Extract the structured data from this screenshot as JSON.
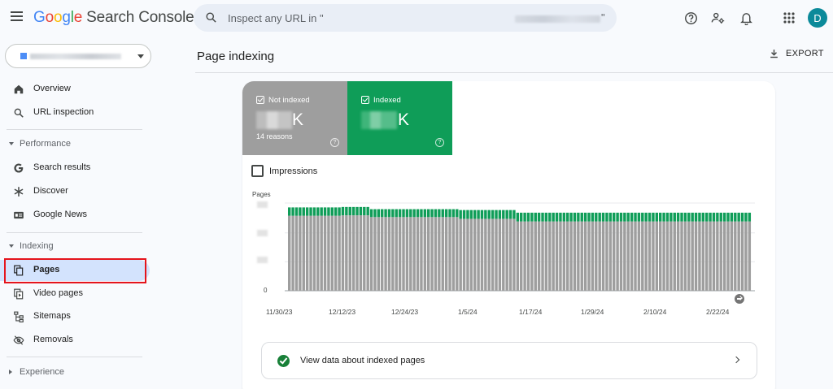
{
  "app": {
    "logo_text": "Google",
    "product_name": "Search Console",
    "account_initial": "D"
  },
  "search": {
    "placeholder": "Inspect any URL in \"",
    "closing_quote": "\""
  },
  "sidebar": {
    "top_items": [
      {
        "label": "Overview",
        "icon": "home-icon"
      },
      {
        "label": "URL inspection",
        "icon": "search-icon"
      }
    ],
    "performance": {
      "header": "Performance",
      "items": [
        {
          "label": "Search results",
          "icon": "google-g-icon"
        },
        {
          "label": "Discover",
          "icon": "asterisk-icon"
        },
        {
          "label": "Google News",
          "icon": "news-icon"
        }
      ]
    },
    "indexing": {
      "header": "Indexing",
      "items": [
        {
          "label": "Pages",
          "icon": "pages-icon",
          "active": true
        },
        {
          "label": "Video pages",
          "icon": "video-pages-icon"
        },
        {
          "label": "Sitemaps",
          "icon": "sitemap-icon"
        },
        {
          "label": "Removals",
          "icon": "visibility-off-icon"
        }
      ]
    },
    "experience": {
      "header": "Experience"
    }
  },
  "main": {
    "title": "Page indexing",
    "export_label": "EXPORT",
    "tiles": {
      "not_indexed": {
        "label": "Not indexed",
        "unit": "K",
        "sub": "14 reasons",
        "color": "#9e9e9e"
      },
      "indexed": {
        "label": "Indexed",
        "unit": "K",
        "color": "#0f9d58"
      }
    },
    "impressions_label": "Impressions",
    "view_data_label": "View data about indexed pages"
  },
  "chart_data": {
    "type": "bar",
    "stacked": true,
    "ylabel": "Pages",
    "y_tick_visible": "0",
    "x_tick_labels": [
      "11/30/23",
      "12/12/23",
      "12/24/23",
      "1/5/24",
      "1/17/24",
      "1/29/24",
      "2/10/24",
      "2/22/24"
    ],
    "series": [
      {
        "color": "#9e9e9e",
        "values": [
          0.855,
          0.855,
          0.855,
          0.855,
          0.855,
          0.855,
          0.855,
          0.855,
          0.855,
          0.855,
          0.855,
          0.855,
          0.855,
          0.855,
          0.855,
          0.86,
          0.86,
          0.86,
          0.86,
          0.86,
          0.86,
          0.86,
          0.86,
          0.84,
          0.84,
          0.84,
          0.84,
          0.84,
          0.84,
          0.84,
          0.84,
          0.84,
          0.84,
          0.84,
          0.84,
          0.84,
          0.84,
          0.84,
          0.84,
          0.84,
          0.84,
          0.84,
          0.84,
          0.84,
          0.84,
          0.84,
          0.84,
          0.84,
          0.82,
          0.82,
          0.82,
          0.82,
          0.82,
          0.82,
          0.82,
          0.82,
          0.82,
          0.82,
          0.82,
          0.82,
          0.82,
          0.82,
          0.82,
          0.82,
          0.79,
          0.79,
          0.79,
          0.79,
          0.79,
          0.79,
          0.79,
          0.79,
          0.79,
          0.79,
          0.79,
          0.79,
          0.79,
          0.79,
          0.79,
          0.79,
          0.79,
          0.79,
          0.79,
          0.79,
          0.79,
          0.79,
          0.79,
          0.79,
          0.79,
          0.79,
          0.79,
          0.79,
          0.79,
          0.79,
          0.79,
          0.79,
          0.79,
          0.79,
          0.79,
          0.79,
          0.79,
          0.79,
          0.79,
          0.79,
          0.79,
          0.79,
          0.79,
          0.79,
          0.79,
          0.79,
          0.79,
          0.79,
          0.79,
          0.79,
          0.79,
          0.79,
          0.79,
          0.79,
          0.79,
          0.79,
          0.79,
          0.79,
          0.79,
          0.79,
          0.79,
          0.79,
          0.79,
          0.79,
          0.79,
          0.79
        ]
      },
      {
        "color": "#0f9d58",
        "values": [
          0.095,
          0.095,
          0.095,
          0.095,
          0.095,
          0.095,
          0.095,
          0.095,
          0.095,
          0.095,
          0.095,
          0.095,
          0.095,
          0.095,
          0.095,
          0.095,
          0.095,
          0.095,
          0.095,
          0.095,
          0.095,
          0.095,
          0.095,
          0.09,
          0.09,
          0.09,
          0.09,
          0.09,
          0.09,
          0.09,
          0.09,
          0.09,
          0.09,
          0.09,
          0.09,
          0.09,
          0.09,
          0.09,
          0.09,
          0.09,
          0.09,
          0.09,
          0.09,
          0.09,
          0.09,
          0.09,
          0.09,
          0.09,
          0.1,
          0.1,
          0.1,
          0.1,
          0.1,
          0.1,
          0.1,
          0.1,
          0.1,
          0.1,
          0.1,
          0.1,
          0.1,
          0.1,
          0.1,
          0.1,
          0.1,
          0.1,
          0.1,
          0.1,
          0.1,
          0.1,
          0.1,
          0.1,
          0.1,
          0.1,
          0.1,
          0.1,
          0.1,
          0.1,
          0.1,
          0.1,
          0.1,
          0.1,
          0.1,
          0.1,
          0.1,
          0.1,
          0.1,
          0.1,
          0.1,
          0.1,
          0.1,
          0.1,
          0.1,
          0.1,
          0.1,
          0.1,
          0.1,
          0.1,
          0.1,
          0.1,
          0.1,
          0.1,
          0.1,
          0.1,
          0.1,
          0.1,
          0.1,
          0.1,
          0.1,
          0.1,
          0.1,
          0.1,
          0.1,
          0.1,
          0.1,
          0.1,
          0.1,
          0.1,
          0.1,
          0.1,
          0.1,
          0.1,
          0.1,
          0.1,
          0.1,
          0.1,
          0.1,
          0.1,
          0.1,
          0.1
        ]
      }
    ],
    "grid": true,
    "colors": {
      "not_indexed": "#9e9e9e",
      "indexed": "#0f9d58"
    }
  }
}
